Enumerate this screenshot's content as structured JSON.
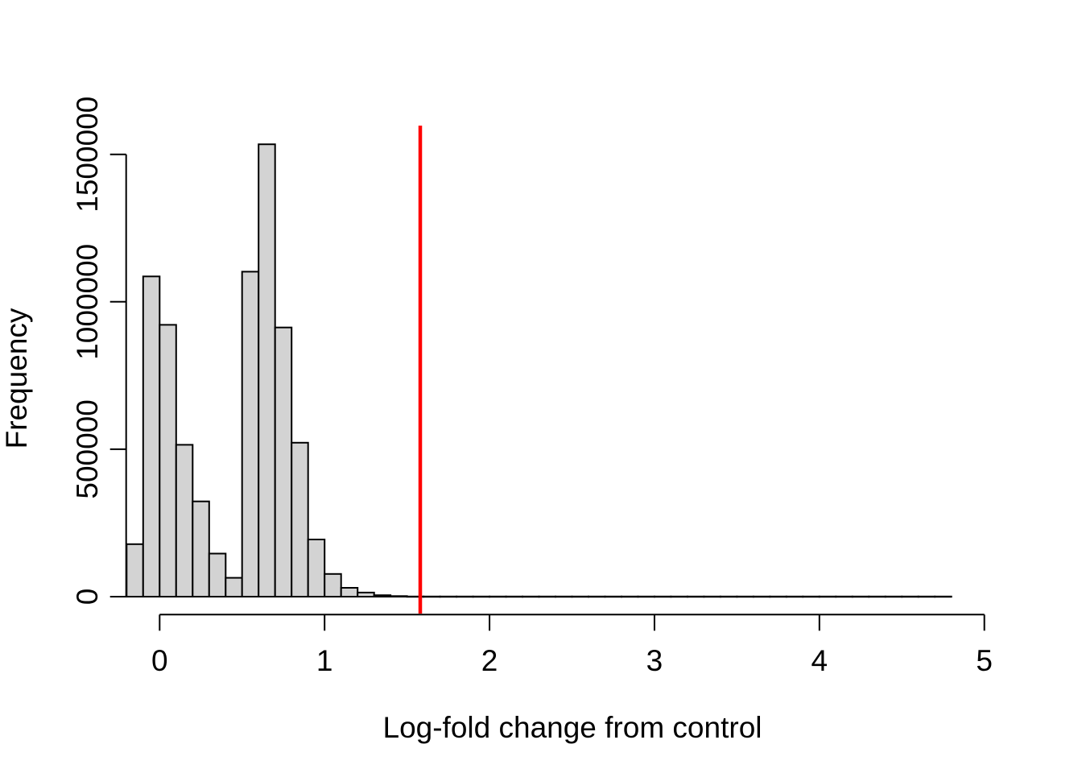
{
  "figure": {
    "background_color": "#FFFFFF",
    "xlabel": "Log-fold change from control",
    "ylabel": "Frequency"
  },
  "chart_data": {
    "type": "bar",
    "subtype": "histogram",
    "title": "",
    "xlabel": "Log-fold change from control",
    "ylabel": "Frequency",
    "bin_start": -0.2,
    "bin_width": 0.1,
    "counts": [
      178000,
      1086000,
      922000,
      515000,
      323000,
      146000,
      64000,
      1102000,
      1534000,
      913000,
      522000,
      194000,
      77000,
      30000,
      14000,
      5000,
      2000,
      500,
      500,
      500,
      500,
      500,
      500,
      500,
      500,
      500,
      500,
      500,
      500,
      500,
      500,
      500,
      500,
      500,
      500,
      500,
      500,
      500,
      500,
      500,
      500,
      500,
      500,
      500,
      500,
      500,
      500,
      500,
      500,
      500
    ],
    "x_tick_values": [
      0,
      1,
      2,
      3,
      4,
      5
    ],
    "x_tick_labels": [
      "0",
      "1",
      "2",
      "3",
      "4",
      "5"
    ],
    "y_tick_values": [
      0,
      500000,
      1000000,
      1500000
    ],
    "y_tick_labels": [
      "0",
      "500000",
      "1000000",
      "1500000"
    ],
    "xlim": [
      -0.2,
      5.0
    ],
    "ylim": [
      0,
      1550000
    ],
    "grid": false,
    "legend": null,
    "bar_fill": "#D3D3D3",
    "bar_stroke": "#000000",
    "axis_color": "#000000",
    "threshold_line": {
      "x": 1.58,
      "color": "#FF0000"
    }
  }
}
